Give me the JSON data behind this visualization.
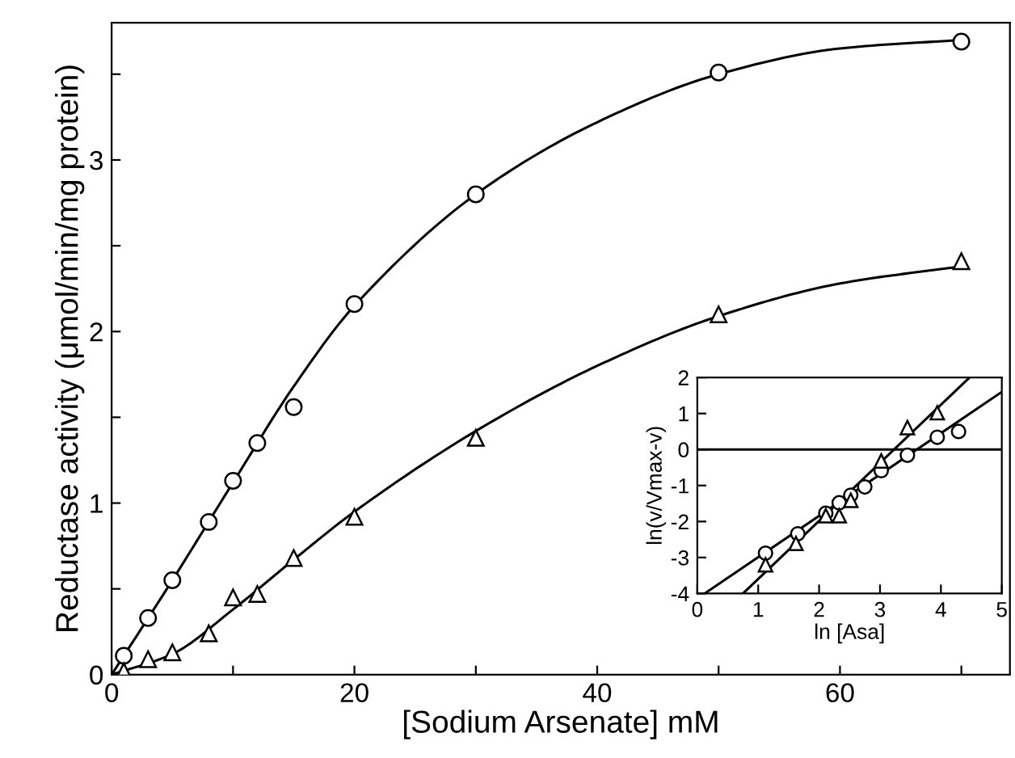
{
  "chart_data": [
    {
      "type": "scatter",
      "xlabel": "[Sodium Arsenate] mM",
      "ylabel": "Reductase activity (μmol/min/mg protein)",
      "xlim": [
        0,
        74
      ],
      "ylim": [
        0,
        3.8
      ],
      "xticks": [
        0,
        {
          "value": 10,
          "label": null
        },
        20,
        {
          "value": 30,
          "label": null
        },
        40,
        {
          "value": 50,
          "label": null
        },
        60,
        {
          "value": 70,
          "label": null
        }
      ],
      "yticks": [
        0,
        {
          "value": 0.5,
          "label": null
        },
        1,
        {
          "value": 1.5,
          "label": null
        },
        2,
        {
          "value": 2.5,
          "label": null
        },
        3,
        {
          "value": 3.5,
          "label": null
        }
      ],
      "grid": false,
      "legend": false,
      "series": [
        {
          "marker": "circle",
          "color": "#000000",
          "x": [
            1,
            3,
            5,
            8,
            10,
            12,
            15,
            20,
            30,
            50,
            70
          ],
          "values": [
            0.11,
            0.33,
            0.55,
            0.89,
            1.13,
            1.35,
            1.56,
            2.16,
            2.8,
            3.51,
            3.69
          ]
        },
        {
          "marker": "triangle",
          "color": "#000000",
          "x": [
            1,
            3,
            5,
            8,
            10,
            12,
            15,
            20,
            30,
            50,
            70
          ],
          "values": [
            0.02,
            0.09,
            0.13,
            0.24,
            0.45,
            0.47,
            0.68,
            0.92,
            1.38,
            2.1,
            2.41
          ]
        },
        {
          "type": "line",
          "marker": "none",
          "line_style": "solid",
          "color": "#000000",
          "x": [
            0,
            5,
            10,
            15,
            20,
            30,
            40,
            50,
            60,
            70
          ],
          "values": [
            0,
            0.55,
            1.12,
            1.68,
            2.15,
            2.8,
            3.22,
            3.5,
            3.65,
            3.7
          ]
        },
        {
          "type": "line",
          "marker": "none",
          "line_style": "solid",
          "color": "#000000",
          "x": [
            0,
            5,
            10,
            15,
            20,
            30,
            40,
            50,
            60,
            70
          ],
          "values": [
            0,
            0.12,
            0.38,
            0.67,
            0.95,
            1.42,
            1.8,
            2.09,
            2.28,
            2.38
          ]
        }
      ]
    },
    {
      "type": "scatter",
      "xlabel": "ln [Asa]",
      "ylabel": "ln(v/Vmax-v)",
      "xlim": [
        0,
        5
      ],
      "ylim": [
        -4,
        2
      ],
      "xticks": [
        0,
        1,
        2,
        3,
        4,
        5
      ],
      "yticks": [
        -4,
        -3,
        -2,
        -1,
        0,
        1,
        2
      ],
      "grid": false,
      "legend": false,
      "ref_lines": [
        {
          "axis": "y",
          "value": 0,
          "color": "#000000",
          "line_style": "solid"
        }
      ],
      "series": [
        {
          "marker": "circle",
          "color": "#000000",
          "x": [
            1.12,
            1.65,
            2.11,
            2.33,
            2.52,
            2.75,
            3.02,
            3.45,
            3.94,
            4.29
          ],
          "values": [
            -2.88,
            -2.34,
            -1.77,
            -1.48,
            -1.27,
            -1.04,
            -0.59,
            -0.16,
            0.34,
            0.5
          ]
        },
        {
          "marker": "triangle",
          "color": "#000000",
          "x": [
            1.12,
            1.62,
            2.11,
            2.33,
            2.52,
            2.75,
            3.02,
            3.45,
            3.94
          ],
          "values": [
            -3.2,
            -2.61,
            -1.84,
            -1.84,
            -1.41,
            null,
            -0.32,
            0.61,
            1.02
          ]
        },
        {
          "type": "line",
          "marker": "none",
          "line_style": "solid",
          "color": "#000000",
          "x": [
            0.12,
            5
          ],
          "values": [
            -4,
            1.6
          ]
        },
        {
          "type": "line",
          "marker": "none",
          "line_style": "solid",
          "color": "#000000",
          "x": [
            0.75,
            4.47
          ],
          "values": [
            -4,
            2
          ]
        }
      ]
    }
  ]
}
